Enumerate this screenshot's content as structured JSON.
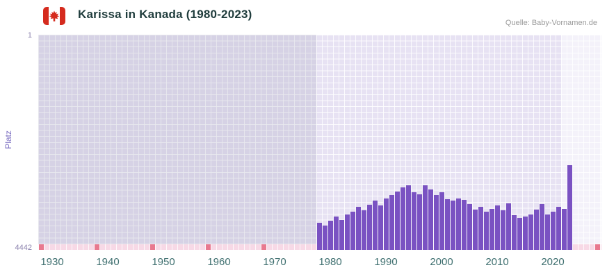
{
  "header": {
    "title": "Karissa in Kanada (1980-2023)",
    "source": "Quelle: Baby-Vornamen.de"
  },
  "axes": {
    "y_label": "Platz",
    "y_tick_top": "1",
    "y_tick_bottom": "4442",
    "x_ticks": [
      "1930",
      "1940",
      "1950",
      "1960",
      "1970",
      "1980",
      "1990",
      "2000",
      "2010",
      "2020"
    ]
  },
  "chart_data": {
    "type": "bar",
    "title": "Karissa in Kanada (1980-2023)",
    "xlabel": "",
    "ylabel": "Platz",
    "y_axis_inverted": true,
    "ylim": [
      1,
      4442
    ],
    "x_range": [
      1927.5,
      2028.75
    ],
    "grid": true,
    "legend": false,
    "years": [
      1978,
      1979,
      1980,
      1981,
      1982,
      1983,
      1984,
      1985,
      1986,
      1987,
      1988,
      1989,
      1990,
      1991,
      1992,
      1993,
      1994,
      1995,
      1996,
      1997,
      1998,
      1999,
      2000,
      2001,
      2002,
      2003,
      2004,
      2005,
      2006,
      2007,
      2008,
      2009,
      2010,
      2011,
      2012,
      2013,
      2014,
      2015,
      2016,
      2017,
      2018,
      2019,
      2020,
      2021,
      2022,
      2023
    ],
    "ranks": [
      3890,
      3940,
      3845,
      3760,
      3830,
      3705,
      3650,
      3560,
      3625,
      3510,
      3430,
      3530,
      3385,
      3310,
      3245,
      3150,
      3115,
      3250,
      3290,
      3105,
      3190,
      3310,
      3255,
      3390,
      3430,
      3385,
      3405,
      3490,
      3610,
      3550,
      3655,
      3600,
      3520,
      3625,
      3480,
      3725,
      3785,
      3750,
      3705,
      3605,
      3500,
      3705,
      3650,
      3555,
      3600,
      2690
    ],
    "no_data_region_years": [
      1927.5,
      1977.5
    ],
    "highlight_band_years": [
      2021.5,
      2028.75
    ],
    "no_data_marker_years": [
      1928,
      1938,
      1948,
      1958,
      1968,
      2028
    ]
  },
  "colors": {
    "bar": "#7a52c2",
    "plot_bg": "#e7e2f3",
    "grid_white": "rgba(255,255,255,0.85)",
    "no_data_overlay": "rgba(140,140,165,0.18)",
    "highlight": "rgba(255,255,255,0.55)",
    "strip_pink": "#f7d9e6",
    "mark_red": "#e8798f",
    "axis_purple": "#8b82ad",
    "label_purple": "#7c6fc2",
    "tick_teal": "#3e6f6f",
    "title_color": "#1f3c3c",
    "source_gray": "#9a9a9a"
  }
}
